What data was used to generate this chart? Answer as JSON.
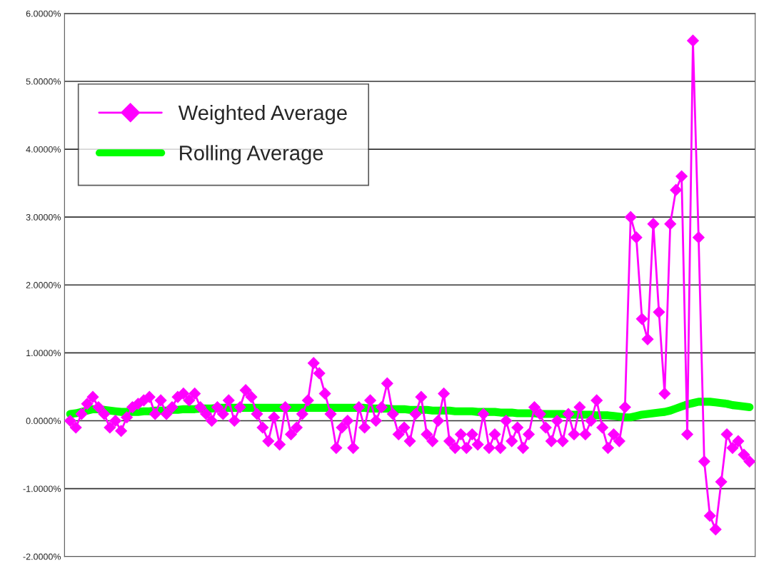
{
  "chart_data": {
    "type": "line",
    "categories": [
      null,
      null,
      null,
      null,
      null,
      null,
      null,
      null,
      null,
      null,
      null,
      null,
      null,
      null,
      null,
      null,
      null,
      null,
      null,
      null,
      null,
      null,
      null,
      null,
      null,
      null,
      null,
      null,
      null,
      null,
      null,
      null,
      null,
      null,
      null,
      null,
      null,
      null,
      null,
      null,
      null,
      null,
      null,
      null,
      null,
      null,
      null,
      null,
      null,
      null,
      null,
      null,
      null,
      null,
      null,
      null,
      null,
      null,
      null,
      null,
      null,
      null,
      null,
      null,
      null,
      null,
      null,
      null,
      null,
      null,
      null,
      null,
      null,
      null,
      null,
      null,
      null,
      null,
      null,
      null,
      null,
      null,
      null,
      null,
      null,
      null,
      null,
      null,
      null,
      null,
      null,
      null,
      null,
      null,
      null,
      null,
      null,
      null,
      null,
      null,
      null,
      null,
      null,
      null,
      null,
      null,
      null,
      null,
      null,
      null,
      null,
      null,
      null,
      null,
      null,
      null,
      null,
      null,
      null,
      null,
      null
    ],
    "ylim": [
      -2,
      6
    ],
    "yticks": [
      {
        "value": -2,
        "label": "-2.0000%"
      },
      {
        "value": -1,
        "label": "-1.0000%"
      },
      {
        "value": 0,
        "label": "0.0000%"
      },
      {
        "value": 1,
        "label": "1.0000%"
      },
      {
        "value": 2,
        "label": "2.0000%"
      },
      {
        "value": 3,
        "label": "3.0000%"
      },
      {
        "value": 4,
        "label": "4.0000%"
      },
      {
        "value": 5,
        "label": "5.0000%"
      },
      {
        "value": 6,
        "label": "6.0000%"
      }
    ],
    "tick_labels": "y",
    "grid": "y",
    "legend": "top left",
    "series": [
      {
        "name": "Weighted Average",
        "color": "#ff00ff",
        "marker": "diamond",
        "line_style": "solid",
        "values": [
          0.0,
          -0.1,
          0.1,
          0.25,
          0.35,
          0.2,
          0.1,
          -0.1,
          0.0,
          -0.15,
          0.05,
          0.2,
          0.25,
          0.3,
          0.35,
          0.1,
          0.3,
          0.1,
          0.2,
          0.35,
          0.4,
          0.3,
          0.4,
          0.2,
          0.1,
          0.0,
          0.2,
          0.1,
          0.3,
          0.0,
          0.2,
          0.45,
          0.35,
          0.1,
          -0.1,
          -0.3,
          0.05,
          -0.35,
          0.2,
          -0.2,
          -0.1,
          0.1,
          0.3,
          0.85,
          0.7,
          0.4,
          0.1,
          -0.4,
          -0.1,
          0.0,
          -0.4,
          0.2,
          -0.1,
          0.3,
          0.0,
          0.2,
          0.55,
          0.1,
          -0.2,
          -0.1,
          -0.3,
          0.1,
          0.35,
          -0.2,
          -0.3,
          0.0,
          0.4,
          -0.3,
          -0.4,
          -0.2,
          -0.4,
          -0.2,
          -0.35,
          0.1,
          -0.4,
          -0.2,
          -0.4,
          0.0,
          -0.3,
          -0.1,
          -0.4,
          -0.2,
          0.2,
          0.1,
          -0.1,
          -0.3,
          0.0,
          -0.3,
          0.1,
          -0.2,
          0.2,
          -0.2,
          0.0,
          0.3,
          -0.1,
          -0.4,
          -0.2,
          -0.3,
          0.2,
          3.0,
          2.7,
          1.5,
          1.2,
          2.9,
          1.6,
          0.4,
          2.9,
          3.4,
          3.6,
          -0.2,
          5.6,
          2.7,
          -0.6,
          -1.4,
          -1.6,
          -0.9,
          -0.2,
          -0.4,
          -0.3,
          -0.5,
          -0.6
        ]
      },
      {
        "name": "Rolling Average",
        "color": "#00ff00",
        "marker": "none",
        "line_style": "solid",
        "values": [
          0.1,
          0.11,
          0.13,
          0.15,
          0.17,
          0.17,
          0.16,
          0.15,
          0.14,
          0.13,
          0.13,
          0.13,
          0.13,
          0.14,
          0.14,
          0.15,
          0.15,
          0.15,
          0.16,
          0.16,
          0.17,
          0.17,
          0.17,
          0.18,
          0.18,
          0.18,
          0.19,
          0.19,
          0.19,
          0.19,
          0.19,
          0.19,
          0.19,
          0.19,
          0.19,
          0.19,
          0.19,
          0.19,
          0.19,
          0.19,
          0.19,
          0.19,
          0.19,
          0.19,
          0.19,
          0.19,
          0.19,
          0.19,
          0.19,
          0.19,
          0.19,
          0.19,
          0.19,
          0.18,
          0.18,
          0.18,
          0.18,
          0.17,
          0.17,
          0.17,
          0.16,
          0.16,
          0.16,
          0.16,
          0.15,
          0.15,
          0.15,
          0.15,
          0.14,
          0.14,
          0.14,
          0.14,
          0.13,
          0.13,
          0.13,
          0.13,
          0.12,
          0.12,
          0.12,
          0.11,
          0.11,
          0.11,
          0.11,
          0.1,
          0.1,
          0.1,
          0.1,
          0.1,
          0.09,
          0.09,
          0.09,
          0.09,
          0.09,
          0.08,
          0.08,
          0.08,
          0.07,
          0.06,
          0.05,
          0.05,
          0.07,
          0.09,
          0.1,
          0.11,
          0.12,
          0.13,
          0.15,
          0.18,
          0.21,
          0.24,
          0.26,
          0.28,
          0.28,
          0.28,
          0.27,
          0.26,
          0.25,
          0.23,
          0.22,
          0.21,
          0.2
        ]
      }
    ]
  }
}
